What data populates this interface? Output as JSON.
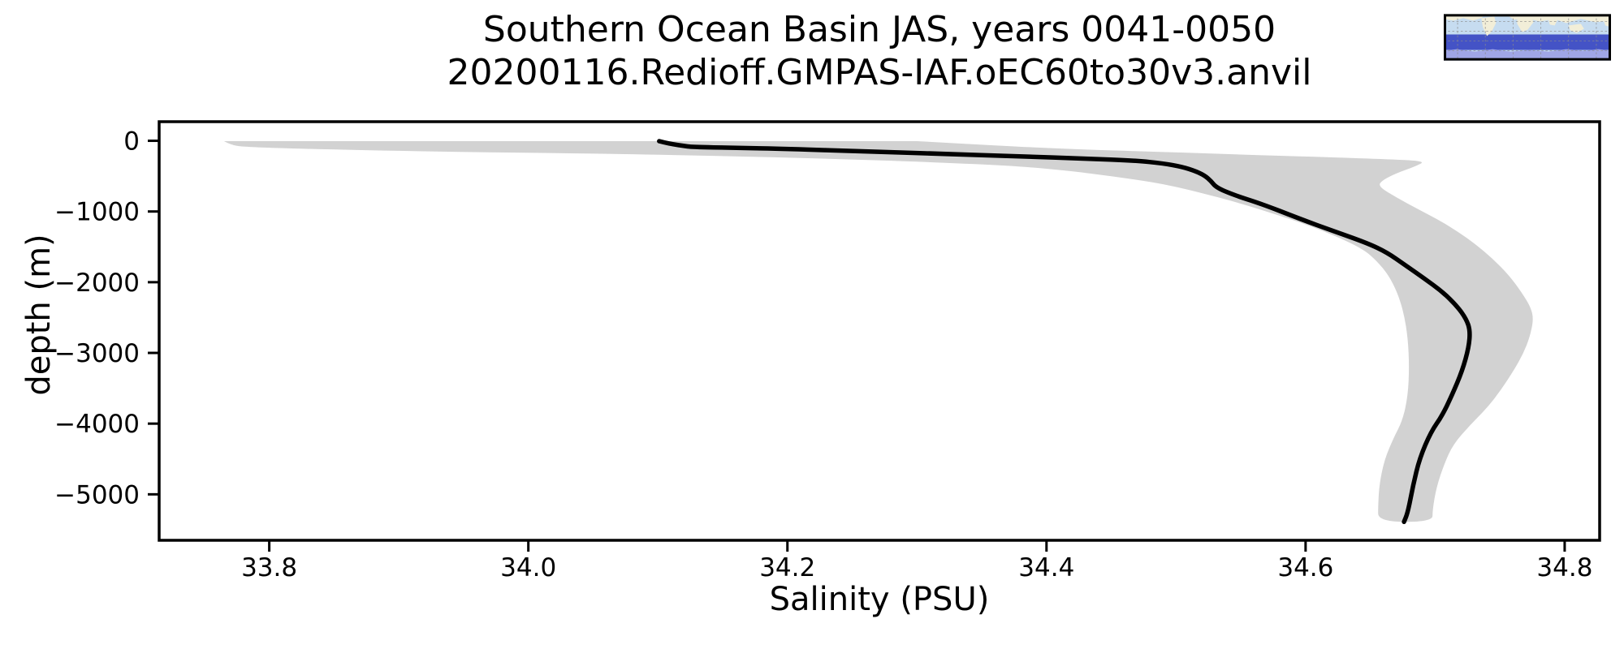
{
  "chart_data": {
    "type": "line",
    "title_line1": "Southern Ocean Basin JAS, years 0041-0050",
    "title_line2": "20200116.Redioff.GMPAS-IAF.oEC60to30v3.anvil",
    "xlabel": "Salinity (PSU)",
    "ylabel": "depth (m)",
    "xlim": [
      33.715,
      34.827
    ],
    "ylim": [
      -5650,
      270
    ],
    "grid": false,
    "legend": "none",
    "xticks": [
      33.8,
      34.0,
      34.2,
      34.4,
      34.6,
      34.8
    ],
    "xtick_labels": [
      "33.8",
      "34.0",
      "34.2",
      "34.4",
      "34.6",
      "34.8"
    ],
    "yticks": [
      0,
      -1000,
      -2000,
      -3000,
      -4000,
      -5000
    ],
    "ytick_labels": [
      "0",
      "−1000",
      "−2000",
      "−3000",
      "−4000",
      "−5000"
    ],
    "line_color": "#000000",
    "band_color": "#d2d2d2",
    "series": [
      {
        "name": "mean salinity profile",
        "points": [
          [
            34.101,
            -5
          ],
          [
            34.105,
            -25
          ],
          [
            34.112,
            -50
          ],
          [
            34.12,
            -72
          ],
          [
            34.126,
            -88
          ],
          [
            34.16,
            -100
          ],
          [
            34.2,
            -115
          ],
          [
            34.26,
            -150
          ],
          [
            34.32,
            -185
          ],
          [
            34.38,
            -220
          ],
          [
            34.43,
            -252
          ],
          [
            34.469,
            -280
          ],
          [
            34.49,
            -320
          ],
          [
            34.505,
            -370
          ],
          [
            34.515,
            -430
          ],
          [
            34.522,
            -490
          ],
          [
            34.527,
            -570
          ],
          [
            34.531,
            -660
          ],
          [
            34.545,
            -770
          ],
          [
            34.565,
            -885
          ],
          [
            34.595,
            -1100
          ],
          [
            34.622,
            -1280
          ],
          [
            34.648,
            -1450
          ],
          [
            34.663,
            -1580
          ],
          [
            34.677,
            -1760
          ],
          [
            34.691,
            -1940
          ],
          [
            34.706,
            -2140
          ],
          [
            34.717,
            -2340
          ],
          [
            34.724,
            -2520
          ],
          [
            34.727,
            -2680
          ],
          [
            34.726,
            -2920
          ],
          [
            34.721,
            -3250
          ],
          [
            34.713,
            -3600
          ],
          [
            34.705,
            -3900
          ],
          [
            34.697,
            -4110
          ],
          [
            34.688,
            -4490
          ],
          [
            34.683,
            -4870
          ],
          [
            34.679,
            -5250
          ],
          [
            34.676,
            -5390
          ]
        ]
      }
    ],
    "band": {
      "name": "salinity spread (min–max envelope)",
      "min_boundary": [
        [
          33.765,
          -5
        ],
        [
          33.77,
          -55
        ],
        [
          33.78,
          -88
        ],
        [
          33.83,
          -115
        ],
        [
          33.905,
          -145
        ],
        [
          33.99,
          -168
        ],
        [
          34.074,
          -188
        ],
        [
          34.15,
          -215
        ],
        [
          34.23,
          -252
        ],
        [
          34.31,
          -300
        ],
        [
          34.38,
          -360
        ],
        [
          34.42,
          -430
        ],
        [
          34.45,
          -500
        ],
        [
          34.48,
          -580
        ],
        [
          34.5,
          -650
        ],
        [
          34.52,
          -740
        ],
        [
          34.545,
          -860
        ],
        [
          34.57,
          -1000
        ],
        [
          34.6,
          -1180
        ],
        [
          34.625,
          -1360
        ],
        [
          34.645,
          -1540
        ],
        [
          34.655,
          -1700
        ],
        [
          34.664,
          -1900
        ],
        [
          34.671,
          -2150
        ],
        [
          34.676,
          -2450
        ],
        [
          34.679,
          -2800
        ],
        [
          34.68,
          -3200
        ],
        [
          34.679,
          -3600
        ],
        [
          34.675,
          -3950
        ],
        [
          34.668,
          -4200
        ],
        [
          34.661,
          -4500
        ],
        [
          34.657,
          -4850
        ],
        [
          34.656,
          -5150
        ],
        [
          34.656,
          -5390
        ]
      ],
      "max_boundary": [
        [
          34.3,
          -5
        ],
        [
          34.34,
          -45
        ],
        [
          34.38,
          -85
        ],
        [
          34.41,
          -110
        ],
        [
          34.44,
          -130
        ],
        [
          34.49,
          -158
        ],
        [
          34.55,
          -195
        ],
        [
          34.61,
          -228
        ],
        [
          34.66,
          -258
        ],
        [
          34.693,
          -285
        ],
        [
          34.685,
          -360
        ],
        [
          34.67,
          -460
        ],
        [
          34.659,
          -560
        ],
        [
          34.656,
          -645
        ],
        [
          34.67,
          -800
        ],
        [
          34.686,
          -960
        ],
        [
          34.703,
          -1120
        ],
        [
          34.718,
          -1290
        ],
        [
          34.731,
          -1460
        ],
        [
          34.744,
          -1660
        ],
        [
          34.757,
          -1900
        ],
        [
          34.767,
          -2150
        ],
        [
          34.774,
          -2360
        ],
        [
          34.776,
          -2530
        ],
        [
          34.773,
          -2780
        ],
        [
          34.768,
          -3010
        ],
        [
          34.761,
          -3240
        ],
        [
          34.751,
          -3520
        ],
        [
          34.74,
          -3780
        ],
        [
          34.727,
          -4020
        ],
        [
          34.714,
          -4290
        ],
        [
          34.707,
          -4570
        ],
        [
          34.701,
          -4900
        ],
        [
          34.698,
          -5220
        ],
        [
          34.698,
          -5390
        ]
      ]
    }
  },
  "inset": {
    "name": "Southern Ocean region locator map",
    "colors": {
      "ocean": "#c6dcf0",
      "land": "#f2eed8",
      "highlight_band": "#4453c6",
      "antarctic": "#a0a6e6",
      "grid": "#8a8a8a",
      "border": "#000000"
    }
  }
}
